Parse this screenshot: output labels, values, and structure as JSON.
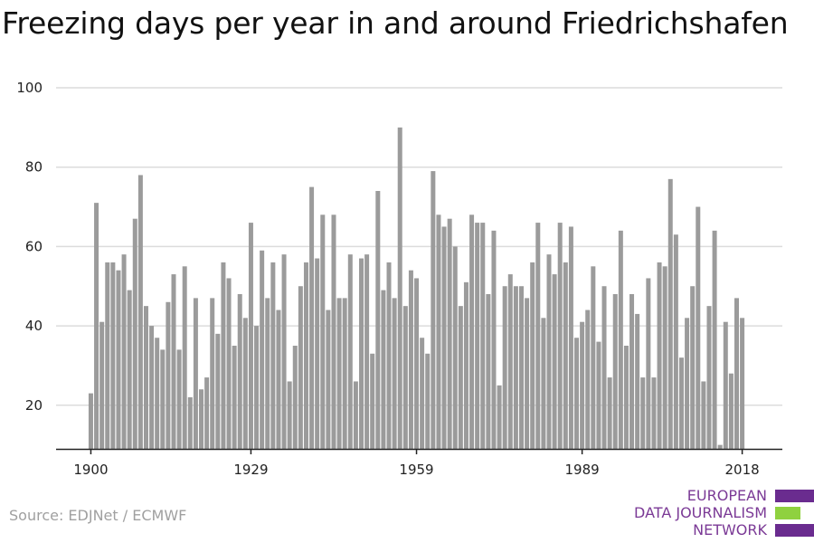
{
  "title": "Freezing days per year in and around Friedrichshafen",
  "source": "Source: EDJNet / ECMWF",
  "logo": {
    "lines": [
      "EUROPEAN",
      "DATA JOURNALISM",
      "NETWORK"
    ],
    "colors": [
      "#6a2c8f",
      "#8fd13f",
      "#6a2c8f"
    ]
  },
  "chart_data": {
    "type": "bar",
    "title": "Freezing days per year in and around Friedrichshafen",
    "xlabel": "",
    "ylabel": "",
    "bar_color": "#9b9b9b",
    "ylim": [
      9,
      100
    ],
    "yticks": [
      20,
      40,
      60,
      80,
      100
    ],
    "xticks": [
      1900,
      1929,
      1959,
      1989,
      2018
    ],
    "grid": true,
    "x": [
      1900,
      1901,
      1902,
      1903,
      1904,
      1905,
      1906,
      1907,
      1908,
      1909,
      1910,
      1911,
      1912,
      1913,
      1914,
      1915,
      1916,
      1917,
      1918,
      1919,
      1920,
      1921,
      1922,
      1923,
      1924,
      1925,
      1926,
      1927,
      1928,
      1929,
      1930,
      1931,
      1932,
      1933,
      1934,
      1935,
      1936,
      1937,
      1938,
      1939,
      1940,
      1941,
      1942,
      1943,
      1944,
      1945,
      1946,
      1947,
      1948,
      1949,
      1950,
      1951,
      1952,
      1953,
      1954,
      1955,
      1956,
      1957,
      1958,
      1959,
      1960,
      1961,
      1962,
      1963,
      1964,
      1965,
      1966,
      1967,
      1968,
      1969,
      1970,
      1971,
      1972,
      1973,
      1974,
      1975,
      1976,
      1977,
      1978,
      1979,
      1980,
      1981,
      1982,
      1983,
      1984,
      1985,
      1986,
      1987,
      1988,
      1989,
      1990,
      1991,
      1992,
      1993,
      1994,
      1995,
      1996,
      1997,
      1998,
      1999,
      2000,
      2001,
      2002,
      2003,
      2004,
      2005,
      2006,
      2007,
      2008,
      2009,
      2010,
      2011,
      2012,
      2013,
      2014,
      2015,
      2016,
      2017,
      2018
    ],
    "values": [
      23,
      71,
      41,
      56,
      56,
      54,
      58,
      49,
      67,
      78,
      45,
      40,
      37,
      34,
      46,
      53,
      34,
      55,
      22,
      47,
      24,
      27,
      47,
      38,
      56,
      52,
      35,
      48,
      42,
      66,
      40,
      59,
      47,
      56,
      44,
      58,
      26,
      35,
      50,
      56,
      75,
      57,
      68,
      44,
      68,
      47,
      47,
      58,
      26,
      57,
      58,
      33,
      74,
      49,
      56,
      47,
      90,
      45,
      54,
      52,
      37,
      33,
      79,
      68,
      65,
      67,
      60,
      45,
      51,
      68,
      66,
      66,
      48,
      64,
      25,
      50,
      53,
      50,
      50,
      47,
      56,
      66,
      42,
      58,
      53,
      66,
      56,
      65,
      37,
      41,
      44,
      55,
      36,
      50,
      27,
      48,
      64,
      35,
      48,
      43,
      27,
      52,
      27,
      56,
      55,
      77,
      63,
      32,
      42,
      50,
      70,
      26,
      45,
      64,
      10,
      41,
      28,
      47,
      42
    ]
  }
}
